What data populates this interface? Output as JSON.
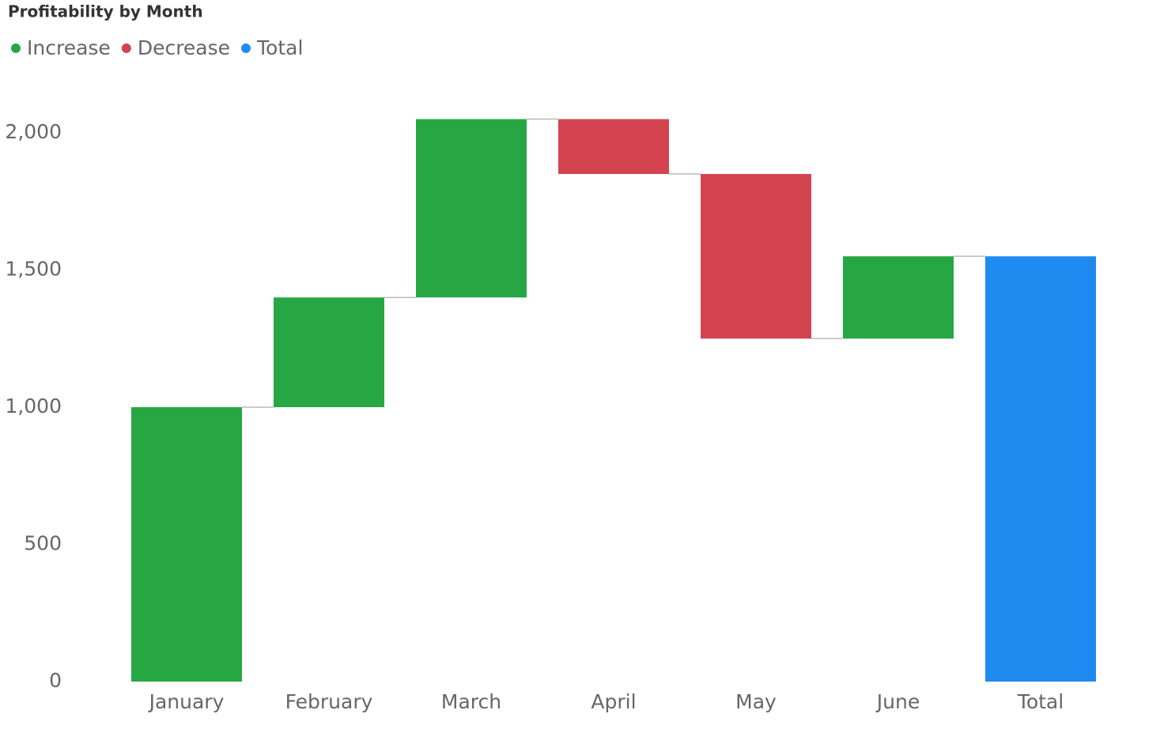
{
  "chart_data": {
    "type": "waterfall",
    "title": "Profitability by Month",
    "categories": [
      "January",
      "February",
      "March",
      "April",
      "May",
      "June",
      "Total"
    ],
    "series": [
      {
        "name": "Increase",
        "color": "#27a744",
        "values": [
          1000,
          400,
          650,
          null,
          null,
          300,
          null
        ]
      },
      {
        "name": "Decrease",
        "color": "#d3434f",
        "values": [
          null,
          null,
          null,
          -200,
          -600,
          null,
          null
        ]
      },
      {
        "name": "Total",
        "color": "#1f8bf0",
        "total": true,
        "values": [
          null,
          null,
          null,
          null,
          null,
          null,
          1550
        ]
      }
    ],
    "ylim": [
      0,
      2200
    ],
    "yticks": [
      0,
      500,
      {
        "value": 1000,
        "label": "1,000"
      },
      {
        "value": 1500,
        "label": "1,500"
      },
      {
        "value": 2000,
        "label": "2,000"
      }
    ],
    "grid": false
  }
}
